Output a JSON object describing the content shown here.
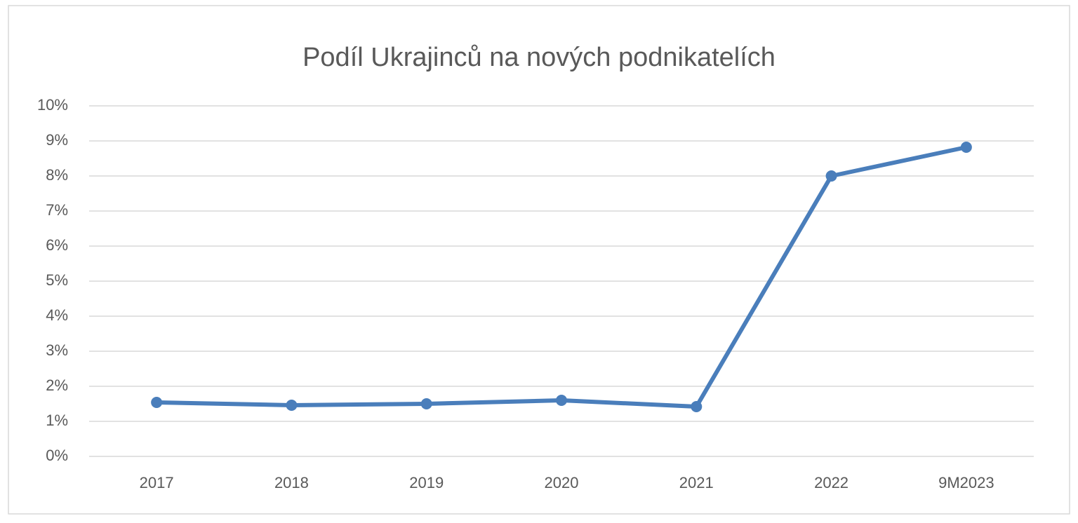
{
  "chart_data": {
    "type": "line",
    "title": "Podíl Ukrajinců na nových podnikatelích",
    "categories": [
      "2017",
      "2018",
      "2019",
      "2020",
      "2021",
      "2022",
      "9M2023"
    ],
    "values": [
      1.54,
      1.46,
      1.5,
      1.6,
      1.42,
      8.0,
      8.82
    ],
    "color": "#4a7ebb",
    "ylim": [
      0,
      10
    ],
    "yticks": [
      {
        "value": 0,
        "label": "0%"
      },
      {
        "value": 1,
        "label": "1%"
      },
      {
        "value": 2,
        "label": "2%"
      },
      {
        "value": 3,
        "label": "3%"
      },
      {
        "value": 4,
        "label": "4%"
      },
      {
        "value": 5,
        "label": "5%"
      },
      {
        "value": 6,
        "label": "6%"
      },
      {
        "value": 7,
        "label": "7%"
      },
      {
        "value": 8,
        "label": "8%"
      },
      {
        "value": 9,
        "label": "9%"
      },
      {
        "value": 10,
        "label": "10%"
      }
    ],
    "grid": true
  }
}
